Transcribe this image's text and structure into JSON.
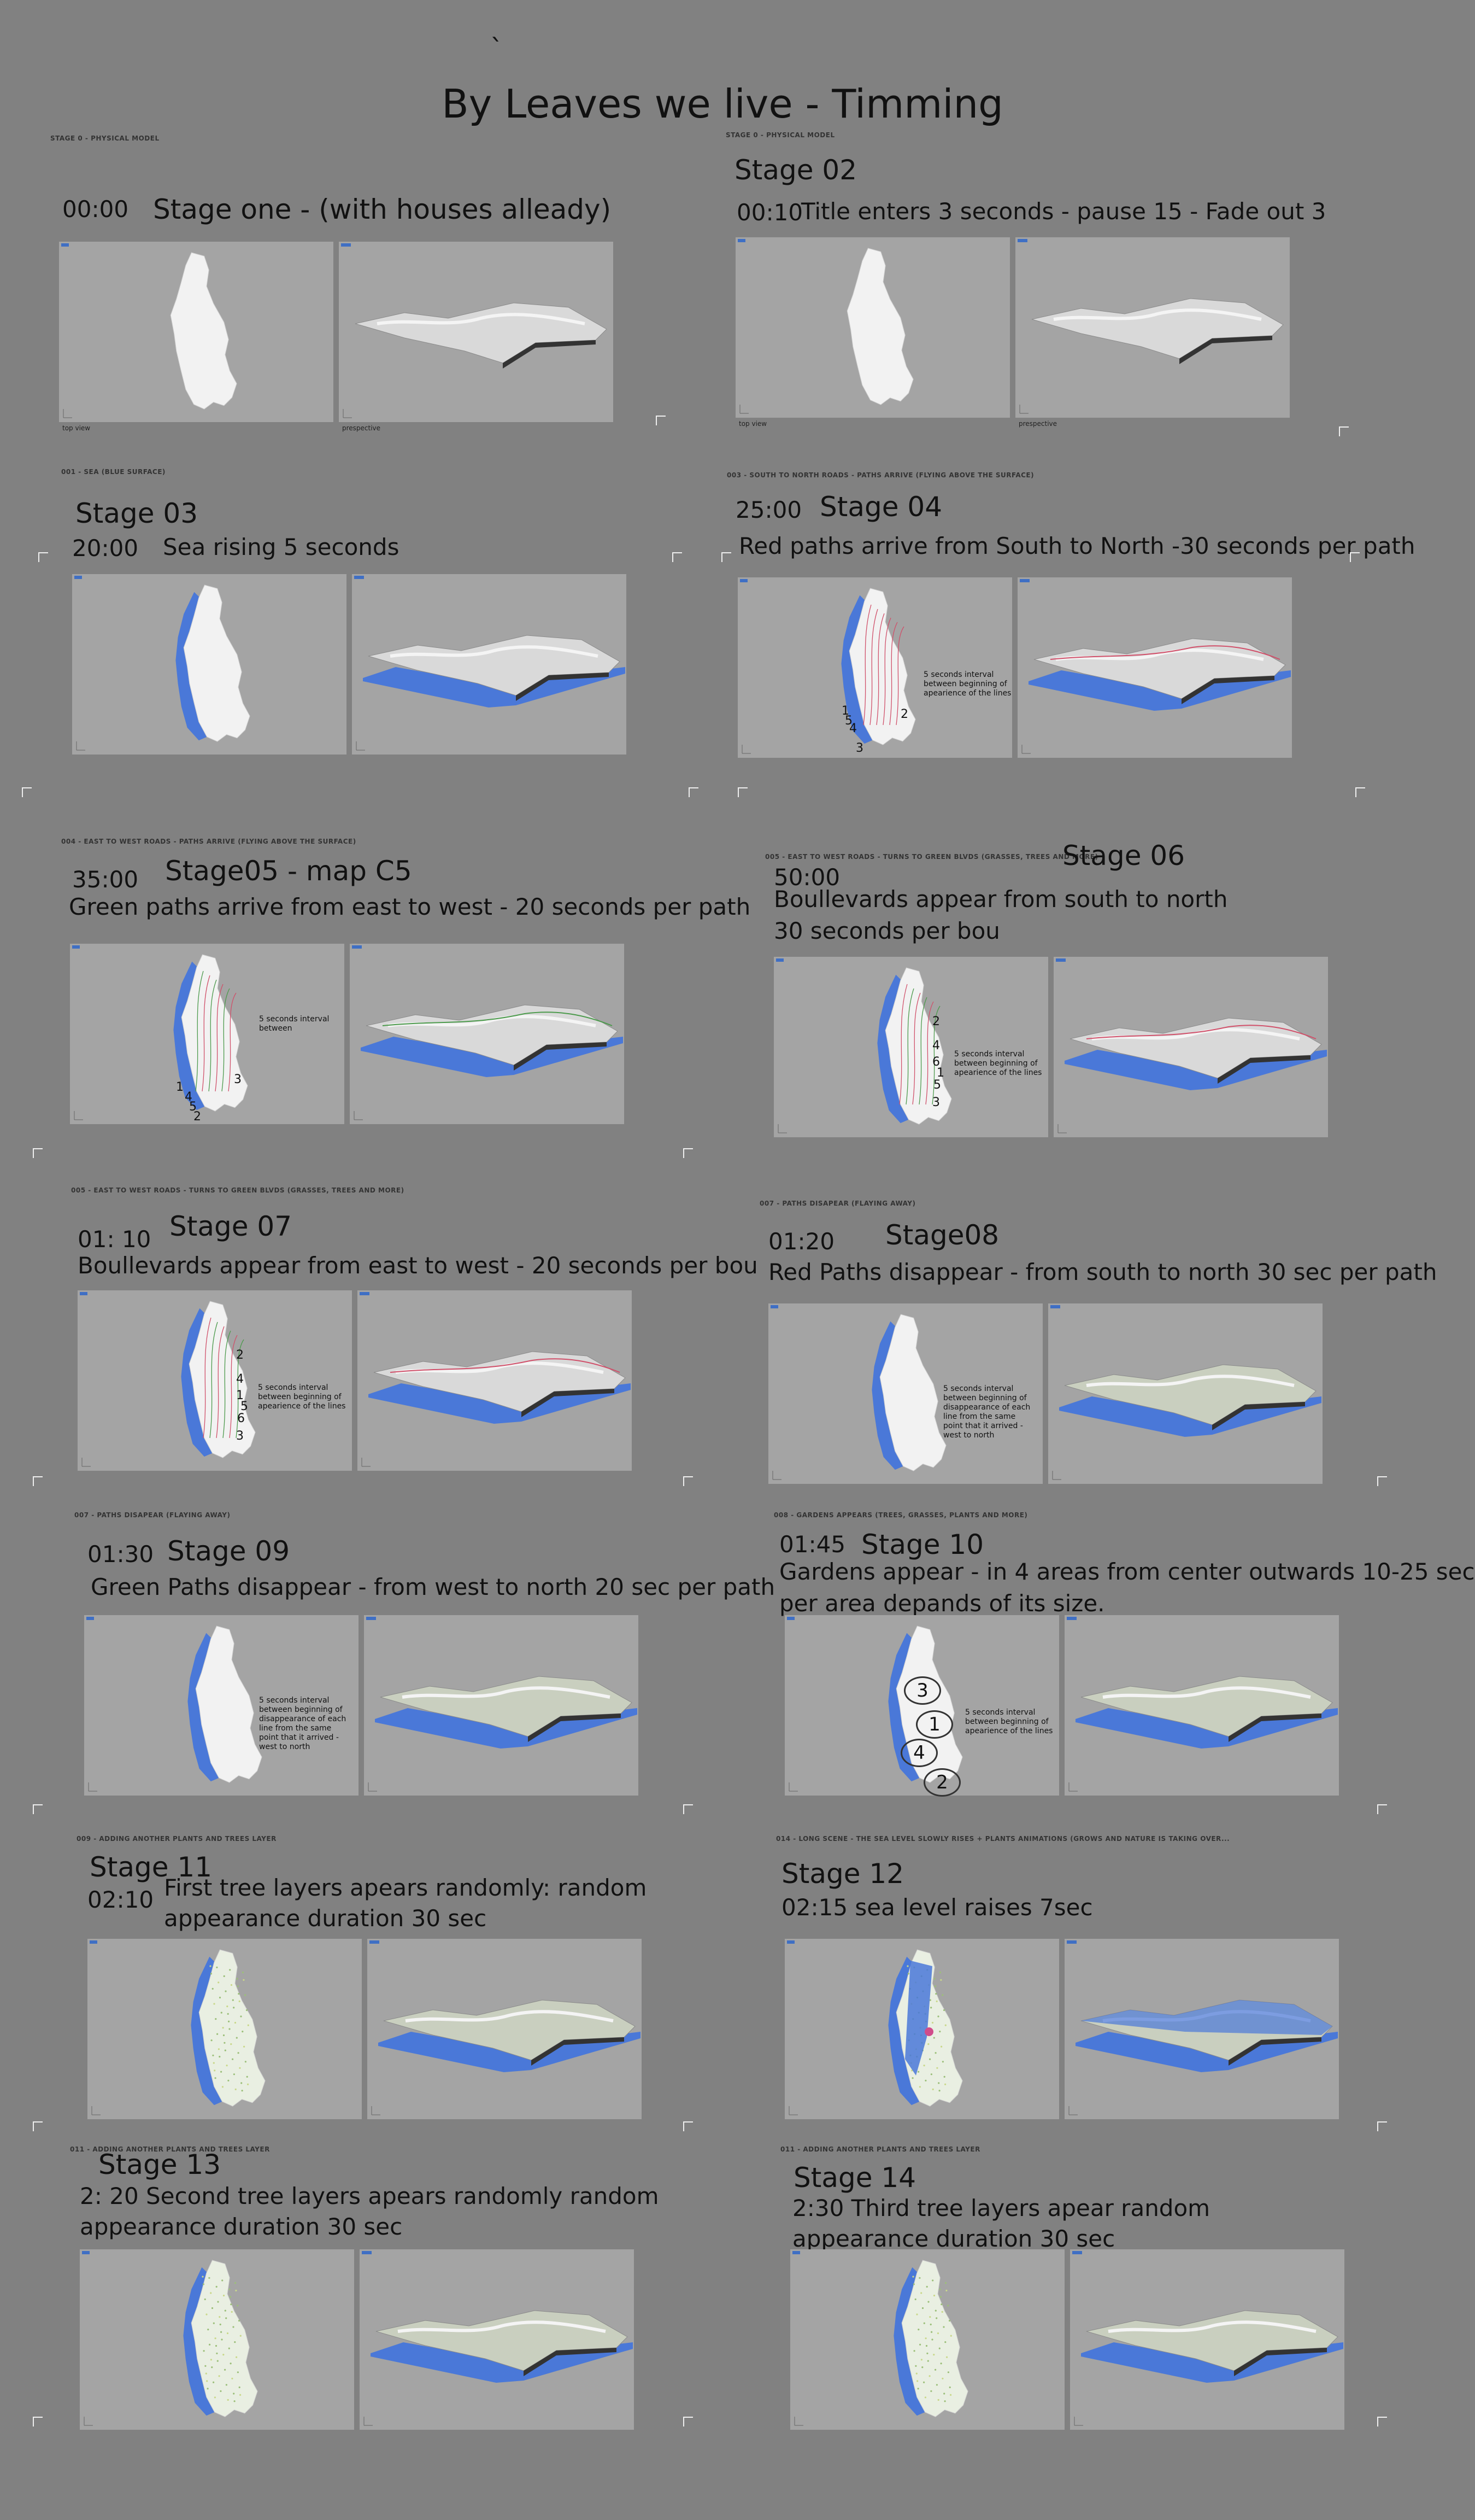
{
  "header": {
    "tick": "`",
    "title": "By Leaves we live - Timming"
  },
  "panel_labels": {
    "top": "top view",
    "persp": "prespective"
  },
  "stages": [
    {
      "small": "STAGE 0 - PHYSICAL MODEL",
      "title": "Stage one - (with houses alleady)",
      "time": "00:00",
      "desc": "",
      "desc2": "",
      "note": "",
      "nums": [],
      "variant": "plain"
    },
    {
      "small": "STAGE 0 - PHYSICAL MODEL",
      "title": "Stage 02",
      "time": "00:10",
      "desc": "Title enters 3 seconds - pause 15 - Fade out 3",
      "desc2": "",
      "note": "",
      "nums": [],
      "variant": "plain"
    },
    {
      "small": "001 - SEA (BLUE SURFACE)",
      "title": "Stage 03",
      "time": "20:00",
      "desc": "Sea rising 5 seconds",
      "desc2": "",
      "note": "",
      "nums": [],
      "variant": "sea"
    },
    {
      "small": "003 - SOUTH TO NORTH ROADS - PATHS ARRIVE (FLYING ABOVE THE SURFACE)",
      "title": "Stage 04",
      "time": "25:00",
      "desc": "Red paths arrive from South to North -30 seconds per path",
      "desc2": "",
      "note": "5 seconds interval between beginning of apearience of the lines",
      "nums": [
        "1",
        "5",
        "4",
        "3",
        "2"
      ],
      "variant": "red"
    },
    {
      "small": "004 - EAST TO WEST ROADS - PATHS ARRIVE (FLYING ABOVE THE SURFACE)",
      "title": "Stage05 - map C5",
      "time": "35:00",
      "desc": "Green paths arrive from east to west  - 20 seconds  per path",
      "desc2": "",
      "note": "5 seconds interval between",
      "nums": [
        "1",
        "4",
        "5",
        "2",
        "3"
      ],
      "variant": "green"
    },
    {
      "small": "005 - EAST TO WEST ROADS - TURNS TO GREEN BLVDS (GRASSES, TREES AND MORE)",
      "title": "Stage 06",
      "time": "50:00",
      "desc": "Boullevards appear from south to north",
      "desc2": "30 seconds per bou",
      "note": "5 seconds interval between beginning of apearience of the lines",
      "nums": [
        "2",
        "4",
        "6",
        "1",
        "5",
        "3"
      ],
      "variant": "blvd"
    },
    {
      "small": "005 - EAST TO WEST ROADS - TURNS TO GREEN BLVDS (GRASSES, TREES AND MORE)",
      "title": "Stage 07",
      "time": "01: 10",
      "desc": "Boullevards appear from east to west  -  20 seconds per bou",
      "desc2": "",
      "note": "5 seconds interval between beginning of apearience of the lines",
      "nums": [
        "2",
        "4",
        "1",
        "5",
        "6",
        "3"
      ],
      "variant": "blvd"
    },
    {
      "small": "007 - PATHS DISAPEAR (FLAYING AWAY)",
      "title": "Stage08",
      "time": "01:20",
      "desc": "Red Paths disappear - from south to north 30 sec per path",
      "desc2": "",
      "note": "5 seconds interval between beginning of disappearance of each line from the same point that it arrived - west to north",
      "nums": [],
      "variant": "light"
    },
    {
      "small": "007 - PATHS DISAPEAR (FLAYING AWAY)",
      "title": "Stage 09",
      "time": "01:30",
      "desc": "Green Paths disappear - from west to north 20 sec per path",
      "desc2": "",
      "note": "5 seconds interval between beginning of disappearance of each line from the same point that it arrived - west to north",
      "nums": [],
      "variant": "light"
    },
    {
      "small": "008 - GARDENS APPEARS (TREES, GRASSES, PLANTS AND MORE)",
      "title": "Stage 10",
      "time": "01:45",
      "desc": "Gardens appear - in 4 areas from center outwards 10-25 sec",
      "desc2": "per area depands of its size.",
      "note": "5 seconds interval between beginning of apearience of the lines",
      "nums": [
        "3",
        "1",
        "4",
        "2"
      ],
      "variant": "gardens"
    },
    {
      "small": "009 - ADDING ANOTHER PLANTS AND TREES LAYER",
      "title": "Stage 11",
      "time": "02:10",
      "desc": "First tree layers apears randomly: random",
      "desc2": "appearance  duration 30 sec",
      "note": "",
      "nums": [],
      "variant": "trees"
    },
    {
      "small": "014 - LONG SCENE - THE SEA LEVEL SLOWLY RISES + PLANTS ANIMATIONS (GROWS AND NATURE IS TAKING OVER...",
      "title": "Stage 12",
      "time": "",
      "desc": "02:15 sea level raises 7sec",
      "desc2": "",
      "note": "",
      "nums": [],
      "variant": "flood"
    },
    {
      "small": "011 - ADDING ANOTHER PLANTS AND TREES LAYER",
      "title": "Stage 13",
      "time": "",
      "desc": "2: 20 Second tree layers apears randomly  random",
      "desc2": "appearance  duration 30 sec",
      "note": "",
      "nums": [],
      "variant": "trees"
    },
    {
      "small": "011 - ADDING ANOTHER PLANTS AND TREES LAYER",
      "title": "Stage 14",
      "time": "",
      "desc": "2:30 Third tree layers apear random",
      "desc2": "appearance  duration 30 sec",
      "note": "",
      "nums": [],
      "variant": "trees"
    }
  ],
  "colors": {
    "background": "#818181",
    "panel": "#a4a4a4",
    "sea": "#4a78d8",
    "red_path": "#d0506a",
    "green_path": "#4c9a4c"
  }
}
